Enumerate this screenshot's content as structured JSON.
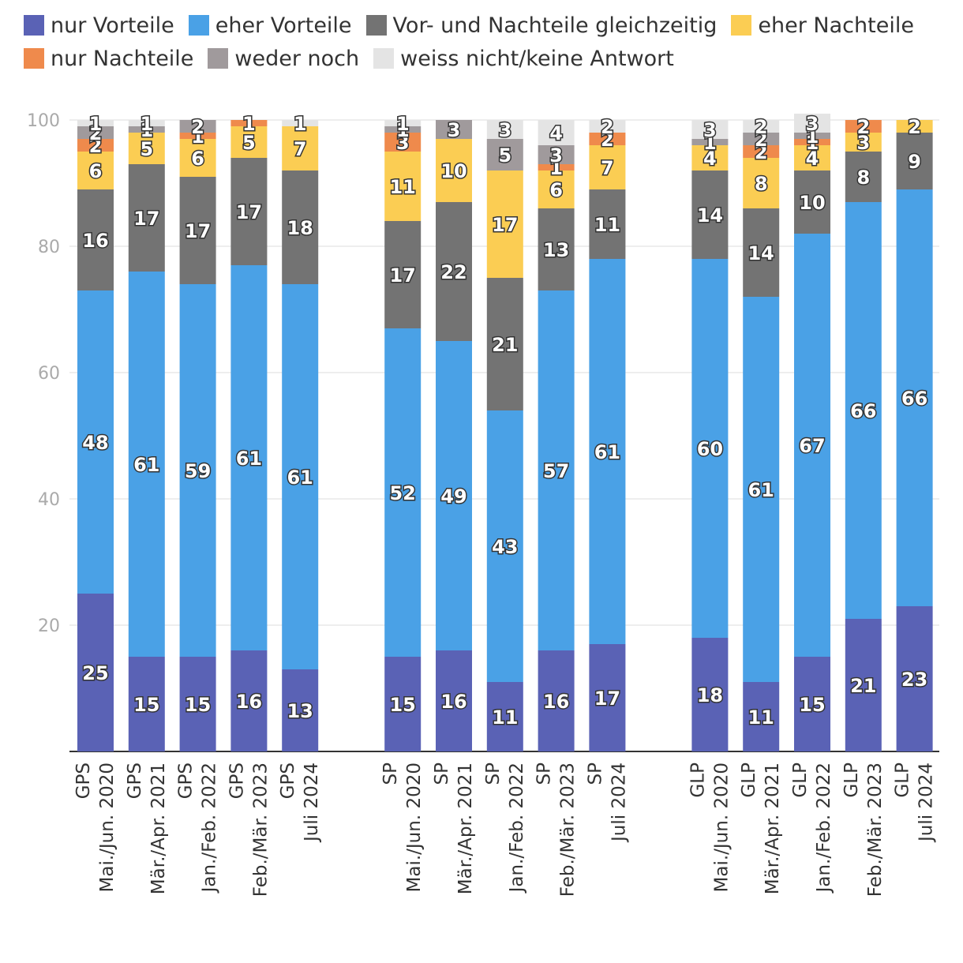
{
  "chart_data": {
    "type": "stacked-bar",
    "ylim": [
      0,
      100
    ],
    "yticks": [
      20,
      40,
      60,
      80,
      100
    ],
    "grid": true,
    "legend_position": "top",
    "series": [
      {
        "name": "nur Vorteile",
        "color": "#5a62b5"
      },
      {
        "name": "eher Vorteile",
        "color": "#4aa1e6"
      },
      {
        "name": "Vor- und Nachteile gleichzeitig",
        "color": "#737373"
      },
      {
        "name": "eher Nachteile",
        "color": "#fbcd53"
      },
      {
        "name": "nur Nachteile",
        "color": "#ef8a4c"
      },
      {
        "name": "weder noch",
        "color": "#a09a9c"
      },
      {
        "name": "weiss nicht/keine Antwort",
        "color": "#e4e4e4"
      }
    ],
    "groups": [
      {
        "party": "GPS",
        "bars": [
          {
            "period": "Mai./Jun. 2020",
            "values": [
              25,
              48,
              16,
              6,
              2,
              2,
              1
            ]
          },
          {
            "period": "Mär./Apr. 2021",
            "values": [
              15,
              61,
              17,
              5,
              0,
              1,
              1
            ]
          },
          {
            "period": "Jan./Feb. 2022",
            "values": [
              15,
              59,
              17,
              6,
              1,
              2,
              0
            ]
          },
          {
            "period": "Feb./Mär. 2023",
            "values": [
              16,
              61,
              17,
              5,
              1,
              0,
              0
            ]
          },
          {
            "period": "Juli 2024",
            "values": [
              13,
              61,
              18,
              7,
              0,
              0,
              1
            ]
          }
        ]
      },
      {
        "party": "SP",
        "bars": [
          {
            "period": "Mai./Jun. 2020",
            "values": [
              15,
              52,
              17,
              11,
              3,
              1,
              1
            ]
          },
          {
            "period": "Mär./Apr. 2021",
            "values": [
              16,
              49,
              22,
              10,
              0,
              3,
              0
            ]
          },
          {
            "period": "Jan./Feb. 2022",
            "values": [
              11,
              43,
              21,
              17,
              0,
              5,
              3
            ]
          },
          {
            "period": "Feb./Mär. 2023",
            "values": [
              16,
              57,
              13,
              6,
              1,
              3,
              4
            ]
          },
          {
            "period": "Juli 2024",
            "values": [
              17,
              61,
              11,
              7,
              2,
              0,
              2
            ]
          }
        ]
      },
      {
        "party": "GLP",
        "bars": [
          {
            "period": "Mai./Jun. 2020",
            "values": [
              18,
              60,
              14,
              4,
              0,
              1,
              3
            ]
          },
          {
            "period": "Mär./Apr. 2021",
            "values": [
              11,
              61,
              14,
              8,
              2,
              2,
              2
            ]
          },
          {
            "period": "Jan./Feb. 2022",
            "values": [
              15,
              67,
              10,
              4,
              1,
              1,
              3
            ]
          },
          {
            "period": "Feb./Mär. 2023",
            "values": [
              21,
              66,
              8,
              3,
              2,
              0,
              0
            ]
          },
          {
            "period": "Juli 2024",
            "values": [
              23,
              66,
              9,
              2,
              0,
              0,
              0
            ]
          }
        ]
      }
    ]
  }
}
